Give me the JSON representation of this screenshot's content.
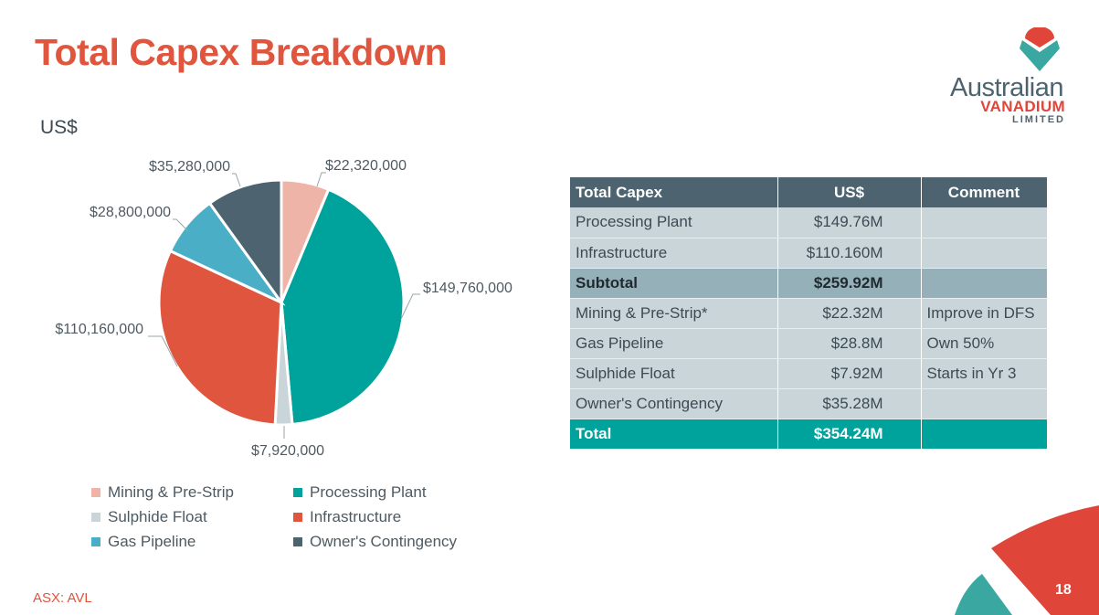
{
  "slide": {
    "title": "Total Capex Breakdown",
    "unit_label": "US$",
    "ticker": "ASX: AVL",
    "page_number": "18"
  },
  "logo": {
    "line1": "Australian",
    "line2": "VANADIUM",
    "line3": "LIMITED",
    "colors": {
      "red": "#e0453a",
      "teal": "#3aa8a0",
      "grey": "#4d6470"
    }
  },
  "chart_data": {
    "type": "pie",
    "title": "",
    "slices": [
      {
        "name": "Mining & Pre-Strip",
        "value": 22320000,
        "label": "$22,320,000",
        "color": "#efb4a8"
      },
      {
        "name": "Processing Plant",
        "value": 149760000,
        "label": "$149,760,000",
        "color": "#00a29c"
      },
      {
        "name": "Sulphide Float",
        "value": 7920000,
        "label": "$7,920,000",
        "color": "#c9d5d9"
      },
      {
        "name": "Infrastructure",
        "value": 110160000,
        "label": "$110,160,000",
        "color": "#e0553d"
      },
      {
        "name": "Gas Pipeline",
        "value": 28800000,
        "label": "$28,800,000",
        "color": "#4aaec6"
      },
      {
        "name": "Owner's Contingency",
        "value": 35280000,
        "label": "$35,280,000",
        "color": "#4d6470"
      }
    ],
    "legend_order": [
      "Mining & Pre-Strip",
      "Processing Plant",
      "Sulphide Float",
      "Infrastructure",
      "Gas Pipeline",
      "Owner's Contingency"
    ],
    "legend_position": "bottom"
  },
  "table": {
    "headers": [
      "Total Capex",
      "US$",
      "Comment"
    ],
    "rows": [
      {
        "kind": "plain",
        "cells": [
          "Processing Plant",
          "$149.76M",
          ""
        ]
      },
      {
        "kind": "plain",
        "cells": [
          "Infrastructure",
          "$110.160M",
          ""
        ]
      },
      {
        "kind": "sub",
        "cells": [
          "Subtotal",
          "$259.92M",
          ""
        ]
      },
      {
        "kind": "plain",
        "cells": [
          "Mining & Pre-Strip*",
          "$22.32M",
          "Improve in DFS"
        ]
      },
      {
        "kind": "plain",
        "cells": [
          "Gas Pipeline",
          "$28.8M",
          "Own 50%"
        ]
      },
      {
        "kind": "plain",
        "cells": [
          "Sulphide Float",
          "$7.92M",
          "Starts in Yr 3"
        ]
      },
      {
        "kind": "plain",
        "cells": [
          "Owner's Contingency",
          "$35.28M",
          ""
        ]
      },
      {
        "kind": "total",
        "cells": [
          "Total",
          "$354.24M",
          ""
        ]
      }
    ]
  }
}
